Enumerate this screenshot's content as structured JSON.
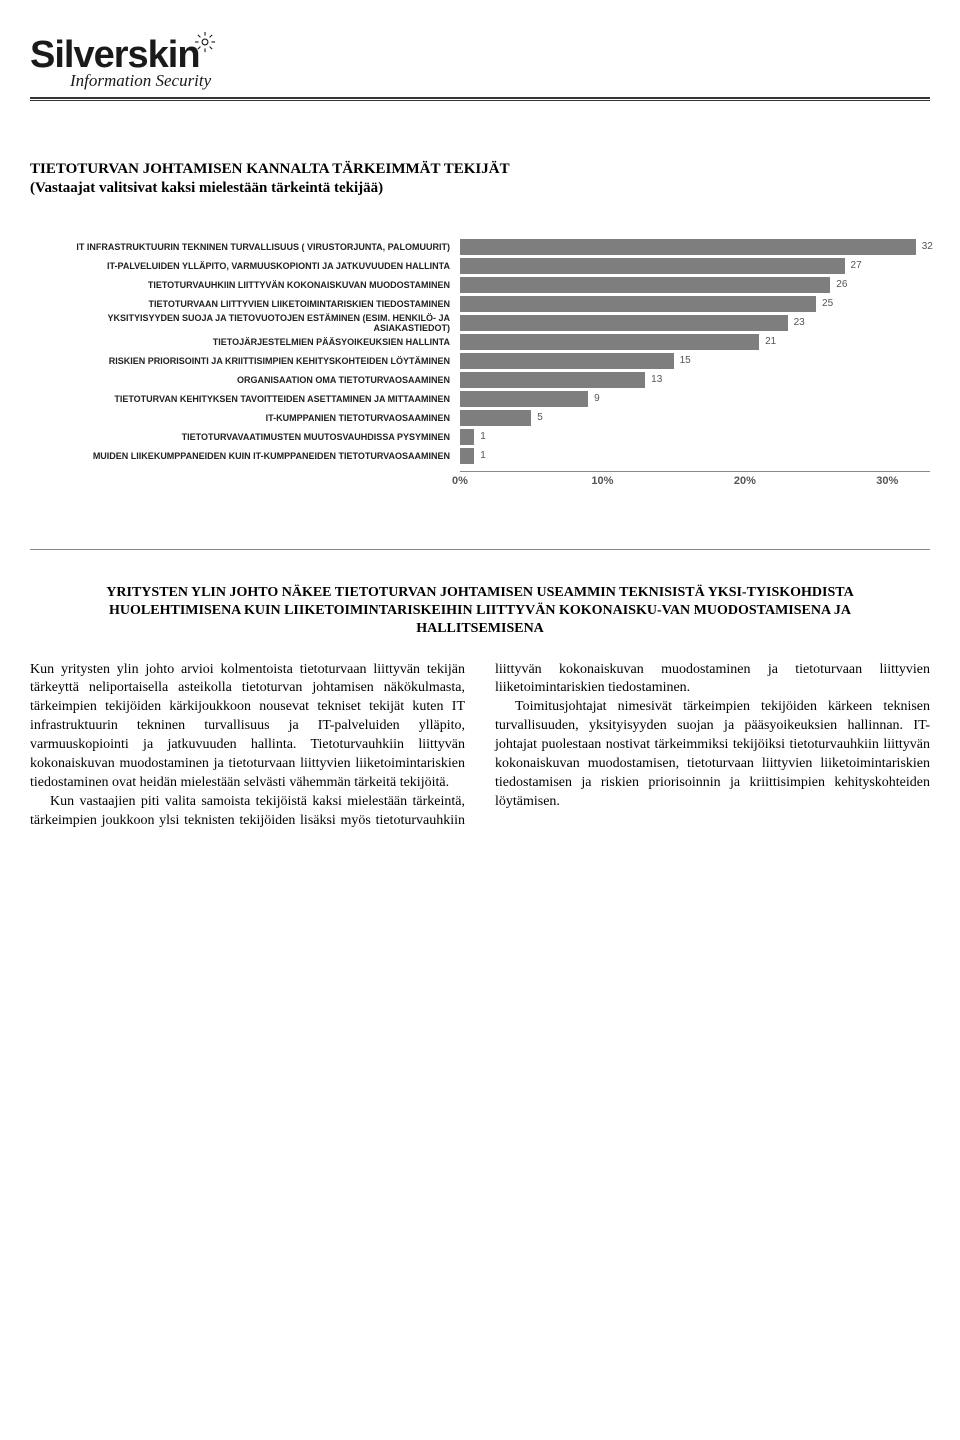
{
  "logo": {
    "name": "Silverskin",
    "tagline": "Information Security"
  },
  "heading": "TIETOTURVAN JOHTAMISEN KANNALTA TÄRKEIMMÄT TEKIJÄT",
  "subheading": "(Vastaajat valitsivat kaksi mielestään tärkeintä tekijää)",
  "chart": {
    "type": "bar",
    "bar_color": "#7e7e7e",
    "label_color": "#222222",
    "value_color": "#555555",
    "axis_color": "#888888",
    "background_color": "#ffffff",
    "label_fontsize": 9,
    "value_fontsize": 10,
    "axis_fontsize": 11,
    "max_value": 33,
    "x_ticks": [
      {
        "pos": 0,
        "label": "0%"
      },
      {
        "pos": 10,
        "label": "10%"
      },
      {
        "pos": 20,
        "label": "20%"
      },
      {
        "pos": 30,
        "label": "30%"
      }
    ],
    "rows": [
      {
        "label": "IT INFRASTRUKTUURIN TEKNINEN TURVALLISUUS ( VIRUSTORJUNTA, PALOMUURIT)",
        "value": 32
      },
      {
        "label": "IT-PALVELUIDEN YLLÄPITO, VARMUUSKOPIONTI JA JATKUVUUDEN HALLINTA",
        "value": 27
      },
      {
        "label": "TIETOTURVAUHKIIN LIITTYVÄN KOKONAISKUVAN MUODOSTAMINEN",
        "value": 26
      },
      {
        "label": "TIETOTURVAAN LIITTYVIEN LIIKETOIMINTARISKIEN TIEDOSTAMINEN",
        "value": 25
      },
      {
        "label": "YKSITYISYYDEN SUOJA JA TIETOVUOTOJEN ESTÄMINEN (ESIM. HENKILÖ- JA ASIAKASTIEDOT)",
        "value": 23
      },
      {
        "label": "TIETOJÄRJESTELMIEN PÄÄSYOIKEUKSIEN HALLINTA",
        "value": 21
      },
      {
        "label": "RISKIEN PRIORISOINTI JA KRIITTISIMPIEN KEHITYSKOHTEIDEN LÖYTÄMINEN",
        "value": 15
      },
      {
        "label": "ORGANISAATION OMA TIETOTURVAOSAAMINEN",
        "value": 13
      },
      {
        "label": "TIETOTURVAN KEHITYKSEN TAVOITTEIDEN ASETTAMINEN JA MITTAAMINEN",
        "value": 9
      },
      {
        "label": "IT-KUMPPANIEN TIETOTURVAOSAAMINEN",
        "value": 5
      },
      {
        "label": "TIETOTURVAVAATIMUSTEN MUUTOSVAUHDISSA PYSYMINEN",
        "value": 1
      },
      {
        "label": "MUIDEN LIIKEKUMPPANEIDEN KUIN IT-KUMPPANEIDEN TIETOTURVAOSAAMINEN",
        "value": 1
      }
    ]
  },
  "section_title": "YRITYSTEN YLIN JOHTO NÄKEE TIETOTURVAN JOHTAMISEN USEAMMIN TEKNISISTÄ YKSI-TYISKOHDISTA HUOLEHTIMISENA KUIN LIIKETOIMINTARISKEIHIN LIITTYVÄN KOKONAISKU-VAN MUODOSTAMISENA JA HALLITSEMISENA",
  "paragraphs": [
    "Kun yritysten ylin johto arvioi kolmentoista tietoturvaan liittyvän tekijän tärkeyttä neliportaisella asteikolla tietoturvan johtamisen näkökulmasta, tärkeimpien tekijöiden kärkijoukkoon nousevat tekniset tekijät kuten IT infrastruktuurin tekninen turvallisuus ja IT-palveluiden ylläpito, varmuuskopiointi ja jatkuvuuden hallinta. Tietoturvauhkiin liittyvän kokonaiskuvan muodostaminen ja tietoturvaan liittyvien liiketoimintariskien tiedostaminen ovat heidän mielestään selvästi vähemmän tärkeitä tekijöitä.",
    "Kun vastaajien piti valita samoista tekijöistä kaksi mielestään tärkeintä, tärkeimpien joukkoon ylsi teknisten tekijöiden lisäksi myös tietoturvauhkiin liittyvän kokonaiskuvan muodostaminen ja tietoturvaan liittyvien liiketoimintariskien tiedostaminen.",
    "Toimitusjohtajat nimesivät tärkeimpien tekijöiden kärkeen teknisen turvallisuuden, yksityisyyden suojan ja pääsyoikeuksien hallinnan. IT-johtajat puolestaan nostivat tärkeimmiksi tekijöiksi tietoturvauhkiin liittyvän kokonaiskuvan muodostamisen, tietoturvaan liittyvien liiketoimintariskien tiedostamisen ja riskien priorisoinnin ja kriittisimpien kehityskohteiden löytämisen."
  ]
}
